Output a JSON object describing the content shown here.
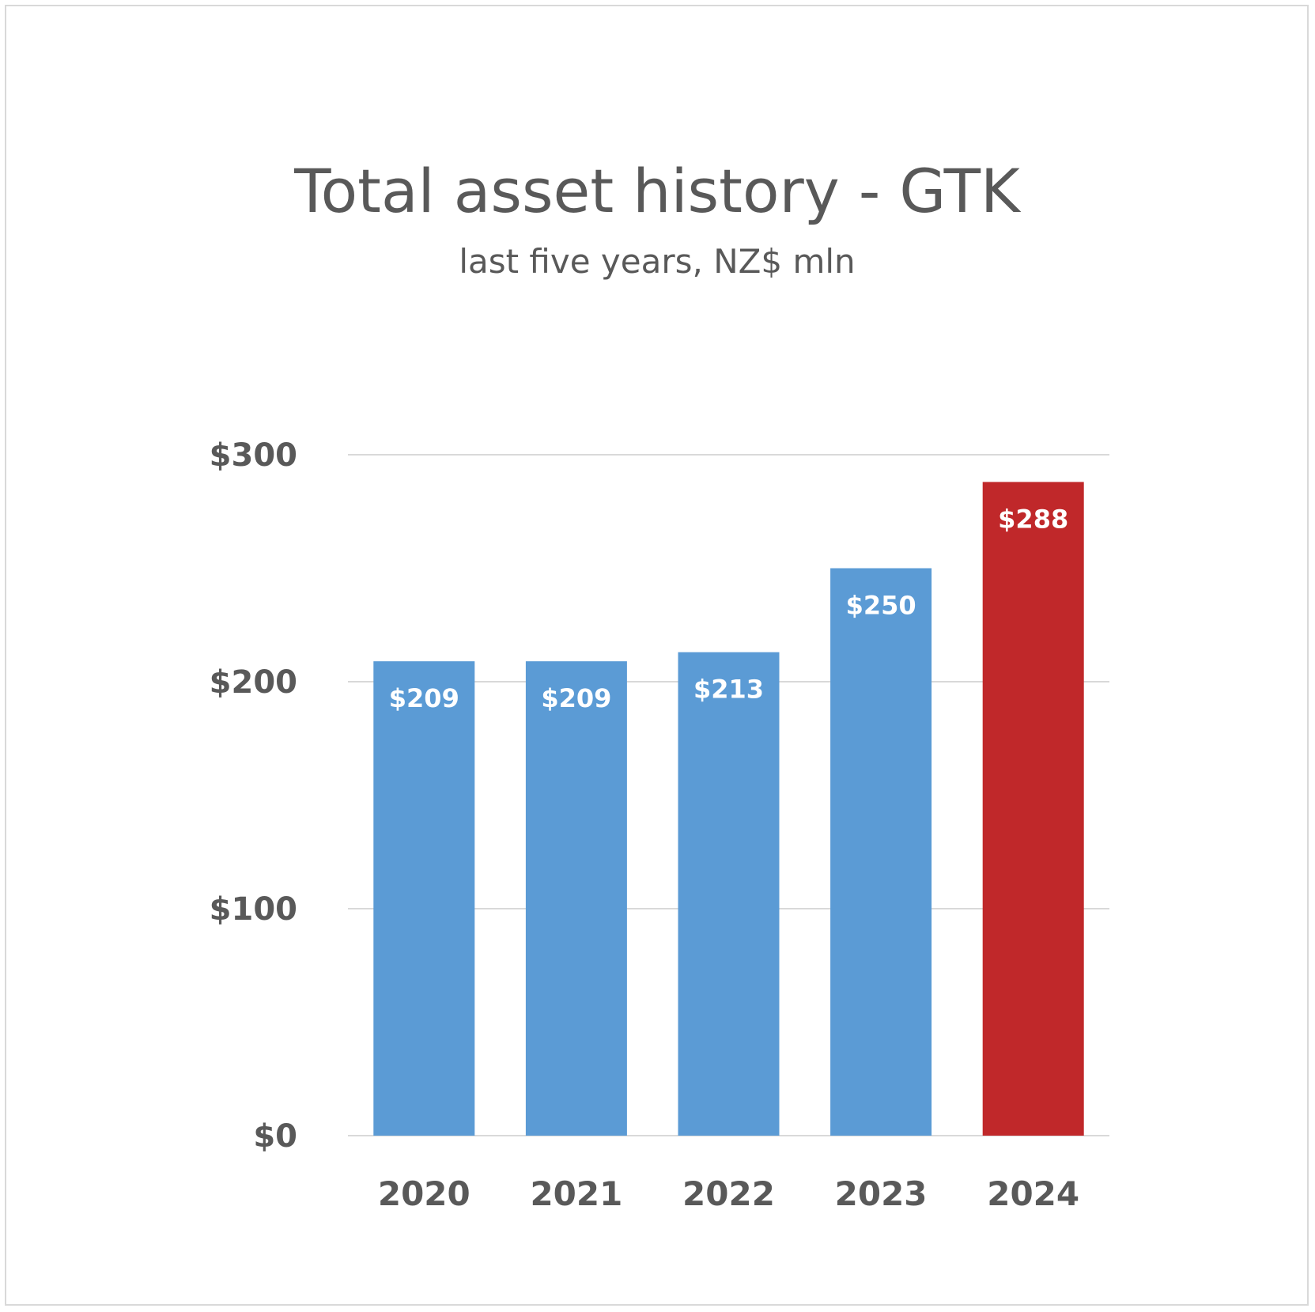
{
  "chart_data": {
    "type": "bar",
    "title": "Total asset history - GTK",
    "subtitle": "last five years, NZ$ mln",
    "categories": [
      "2020",
      "2021",
      "2022",
      "2023",
      "2024"
    ],
    "values": [
      209,
      209,
      213,
      250,
      288
    ],
    "data_labels": [
      "$209",
      "$209",
      "$213",
      "$250",
      "$288"
    ],
    "y_ticks": [
      {
        "value": 0,
        "label": "$0"
      },
      {
        "value": 100,
        "label": "$100"
      },
      {
        "value": 200,
        "label": "$200"
      },
      {
        "value": 300,
        "label": "$300"
      }
    ],
    "ylim": [
      0,
      300
    ],
    "grid": true,
    "legend": "none",
    "colors": {
      "default_bar": "#5b9bd5",
      "highlight_bar": "#c0282a",
      "highlight_index": 4,
      "text": "#595959",
      "grid": "#d9d9d9"
    }
  }
}
